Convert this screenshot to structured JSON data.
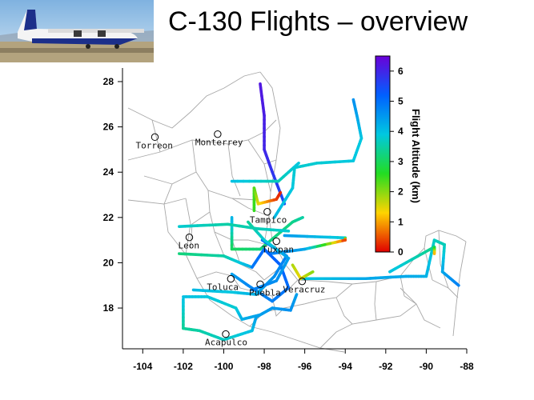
{
  "title": "C-130 Flights – overview",
  "photo": {
    "subject": "C-130 aircraft on runway",
    "sky": "#9fc6e8",
    "ground": "#a89a78",
    "hull": "#1c2f8a"
  },
  "map": {
    "lon_range": [
      -105,
      -88
    ],
    "lat_range": [
      16.2,
      28.6
    ],
    "x_ticks": [
      -104,
      -102,
      -100,
      -98,
      -96,
      -94,
      -92,
      -90,
      -88
    ],
    "x_tick_labels": [
      "-104",
      "-102",
      "-100",
      "-98",
      "-96",
      "-94",
      "-92",
      "-90",
      "-88"
    ],
    "y_ticks": [
      18,
      20,
      22,
      24,
      26,
      28
    ],
    "y_tick_labels": [
      "18",
      "20",
      "22",
      "24",
      "26",
      "28"
    ],
    "cities": [
      {
        "name": "Torreon",
        "lon": -103.4,
        "lat": 25.55,
        "label_dx": -24,
        "label_dy": 14
      },
      {
        "name": "Monterrey",
        "lon": -100.3,
        "lat": 25.68,
        "label_dx": -28,
        "label_dy": 14
      },
      {
        "name": "Leon",
        "lon": -101.7,
        "lat": 21.12,
        "label_dx": -14,
        "label_dy": 14
      },
      {
        "name": "Tampico",
        "lon": -97.85,
        "lat": 22.25,
        "label_dx": -22,
        "label_dy": 14
      },
      {
        "name": "Tuxpan",
        "lon": -97.4,
        "lat": 20.95,
        "label_dx": -18,
        "label_dy": 14
      },
      {
        "name": "Toluca",
        "lon": -99.65,
        "lat": 19.29,
        "label_dx": -30,
        "label_dy": 14
      },
      {
        "name": "Puebla",
        "lon": -98.2,
        "lat": 19.05,
        "label_dx": -14,
        "label_dy": 14
      },
      {
        "name": "Veracruz",
        "lon": -96.13,
        "lat": 19.18,
        "label_dx": -24,
        "label_dy": 14
      },
      {
        "name": "Acapulco",
        "lon": -99.9,
        "lat": 16.85,
        "label_dx": -26,
        "label_dy": 14
      }
    ]
  },
  "colorbar": {
    "label": "Flight Altitude (km)",
    "min": 0,
    "max": 6.5,
    "ticks": [
      0,
      1,
      2,
      3,
      4,
      5,
      6
    ],
    "tick_labels": [
      "0",
      "1",
      "2",
      "3",
      "4",
      "5",
      "6"
    ],
    "colors": [
      "#e00000",
      "#ffd400",
      "#22dd22",
      "#00c8e0",
      "#0060ff",
      "#6a00d8"
    ]
  },
  "flight_tracks": [
    {
      "name": "north-leg",
      "points": [
        [
          -98.2,
          27.9,
          6.2
        ],
        [
          -98.0,
          26.5,
          6.1
        ],
        [
          -98.0,
          25.0,
          6.0
        ],
        [
          -97.6,
          24.0,
          5.8
        ],
        [
          -97.0,
          22.6,
          5.5
        ]
      ]
    },
    {
      "name": "ne-leg",
      "points": [
        [
          -97.5,
          22.0,
          4.1
        ],
        [
          -96.6,
          23.3,
          3.9
        ],
        [
          -96.5,
          24.2,
          3.8
        ],
        [
          -95.4,
          24.4,
          3.8
        ],
        [
          -93.6,
          24.5,
          3.9
        ],
        [
          -93.2,
          25.5,
          3.9
        ],
        [
          -93.4,
          26.4,
          4.3
        ],
        [
          -93.6,
          27.2,
          4.6
        ]
      ]
    },
    {
      "name": "ne-leg-2",
      "points": [
        [
          -99.6,
          23.6,
          4.0
        ],
        [
          -97.3,
          23.6,
          3.6
        ],
        [
          -96.3,
          24.4,
          3.9
        ]
      ]
    },
    {
      "name": "tampico-box",
      "points": [
        [
          -99.6,
          22.0,
          4.2
        ],
        [
          -99.6,
          20.6,
          3.0
        ],
        [
          -98.2,
          20.6,
          3.2
        ],
        [
          -96.6,
          21.8,
          3.3
        ],
        [
          -96.1,
          22.0,
          3.5
        ]
      ]
    },
    {
      "name": "east-loop",
      "points": [
        [
          -97.0,
          21.2,
          4.5
        ],
        [
          -94.0,
          21.1,
          3.8
        ],
        [
          -94.0,
          21.0,
          0.2
        ],
        [
          -96.0,
          20.6,
          4.3
        ],
        [
          -97.7,
          20.4,
          4.8
        ]
      ]
    },
    {
      "name": "gulf-east",
      "points": [
        [
          -96.2,
          19.3,
          3.9
        ],
        [
          -93.0,
          19.3,
          4.3
        ],
        [
          -91.0,
          19.4,
          4.3
        ],
        [
          -90.0,
          19.4,
          4.2
        ],
        [
          -89.6,
          21.0,
          3.7
        ],
        [
          -89.1,
          20.8,
          3.6
        ],
        [
          -89.2,
          19.6,
          4.3
        ],
        [
          -88.4,
          19.0,
          4.8
        ]
      ]
    },
    {
      "name": "yucatan-spur",
      "points": [
        [
          -91.8,
          19.6,
          4.0
        ],
        [
          -89.6,
          20.7,
          3.3
        ],
        [
          -89.6,
          20.4,
          1.0
        ]
      ]
    },
    {
      "name": "west-leg",
      "points": [
        [
          -102.2,
          20.4,
          3.2
        ],
        [
          -100.0,
          20.3,
          3.5
        ],
        [
          -99.2,
          20.0,
          3.9
        ],
        [
          -98.6,
          19.8,
          4.2
        ]
      ]
    },
    {
      "name": "west-leg-2",
      "points": [
        [
          -102.2,
          21.6,
          3.8
        ],
        [
          -99.8,
          21.7,
          3.5
        ],
        [
          -98.3,
          21.5,
          3.6
        ],
        [
          -96.8,
          21.4,
          3.8
        ]
      ]
    },
    {
      "name": "south-box",
      "points": [
        [
          -102.0,
          18.4,
          4.0
        ],
        [
          -102.0,
          17.1,
          3.4
        ],
        [
          -101.2,
          17.0,
          3.5
        ],
        [
          -100.0,
          16.6,
          3.7
        ],
        [
          -98.6,
          17.0,
          4.0
        ],
        [
          -98.4,
          17.6,
          4.4
        ],
        [
          -97.6,
          18.0,
          4.5
        ],
        [
          -96.7,
          17.9,
          4.6
        ],
        [
          -96.4,
          18.6,
          4.4
        ]
      ]
    },
    {
      "name": "south-box-2",
      "points": [
        [
          -102.0,
          18.5,
          4.0
        ],
        [
          -100.8,
          18.5,
          3.9
        ],
        [
          -99.4,
          18.0,
          3.8
        ],
        [
          -99.1,
          17.5,
          4.2
        ],
        [
          -98.2,
          17.7,
          4.4
        ]
      ]
    },
    {
      "name": "mexico-loop",
      "points": [
        [
          -99.6,
          19.5,
          4.4
        ],
        [
          -98.8,
          19.0,
          4.7
        ],
        [
          -97.6,
          18.3,
          4.8
        ],
        [
          -96.8,
          18.9,
          5.0
        ],
        [
          -97.2,
          19.9,
          5.2
        ],
        [
          -98.0,
          20.6,
          5.1
        ],
        [
          -98.6,
          19.8,
          4.9
        ]
      ]
    },
    {
      "name": "valley-crossings",
      "points": [
        [
          -101.5,
          18.8,
          4.1
        ],
        [
          -99.6,
          18.7,
          3.9
        ],
        [
          -98.4,
          18.6,
          4.2
        ],
        [
          -97.5,
          19.4,
          4.6
        ],
        [
          -96.9,
          20.3,
          4.8
        ],
        [
          -98.1,
          21.0,
          5.0
        ]
      ]
    },
    {
      "name": "low-tampico",
      "points": [
        [
          -98.5,
          22.3,
          2.5
        ],
        [
          -98.5,
          23.3,
          2.4
        ],
        [
          -98.3,
          22.6,
          1.5
        ],
        [
          -97.4,
          22.8,
          0.4
        ],
        [
          -97.2,
          23.1,
          0.2
        ]
      ]
    },
    {
      "name": "low-veracruz",
      "points": [
        [
          -96.6,
          19.9,
          1.8
        ],
        [
          -96.2,
          19.3,
          1.4
        ],
        [
          -95.6,
          19.6,
          2.0
        ]
      ]
    },
    {
      "name": "mid-loop",
      "points": [
        [
          -98.8,
          21.8,
          3.4
        ],
        [
          -98.0,
          21.0,
          3.8
        ],
        [
          -96.8,
          20.2,
          4.4
        ],
        [
          -97.4,
          19.2,
          4.6
        ],
        [
          -98.6,
          18.8,
          4.8
        ]
      ]
    }
  ]
}
